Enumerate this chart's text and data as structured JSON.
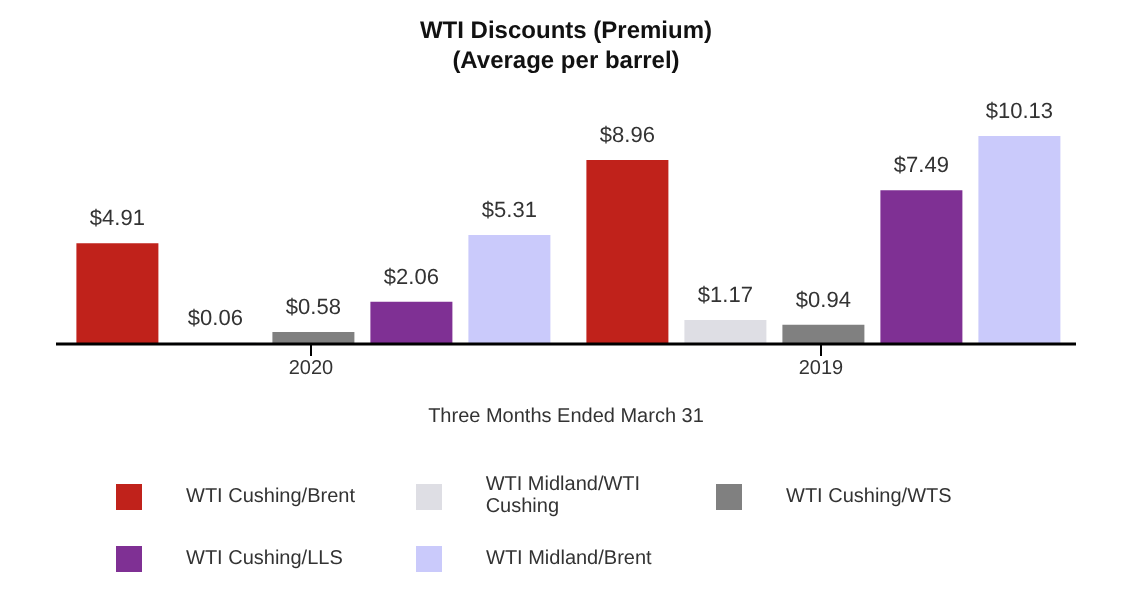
{
  "chart_data": {
    "type": "bar",
    "title": "WTI Discounts (Premium)",
    "subtitle": "(Average per barrel)",
    "xlabel": "Three Months Ended March 31",
    "categories": [
      "2020",
      "2019"
    ],
    "legend": "bottom",
    "series": [
      {
        "name": "WTI Cushing/Brent",
        "color": "#c0221b",
        "values": [
          4.91,
          8.96
        ],
        "value_labels": [
          "$4.91",
          "$8.96"
        ]
      },
      {
        "name": "WTI Midland/WTI Cushing",
        "color": "#dedee4",
        "values": [
          0.06,
          1.17
        ],
        "value_labels": [
          "$0.06",
          "$1.17"
        ]
      },
      {
        "name": "WTI Cushing/WTS",
        "color": "#808080",
        "values": [
          0.58,
          0.94
        ],
        "value_labels": [
          "$0.58",
          "$0.94"
        ]
      },
      {
        "name": "WTI Cushing/LLS",
        "color": "#7f3094",
        "values": [
          2.06,
          7.49
        ],
        "value_labels": [
          "$2.06",
          "$7.49"
        ]
      },
      {
        "name": "WTI Midland/Brent",
        "color": "#cacafb",
        "values": [
          5.31,
          10.13
        ],
        "value_labels": [
          "$5.31",
          "$10.13"
        ]
      }
    ]
  }
}
